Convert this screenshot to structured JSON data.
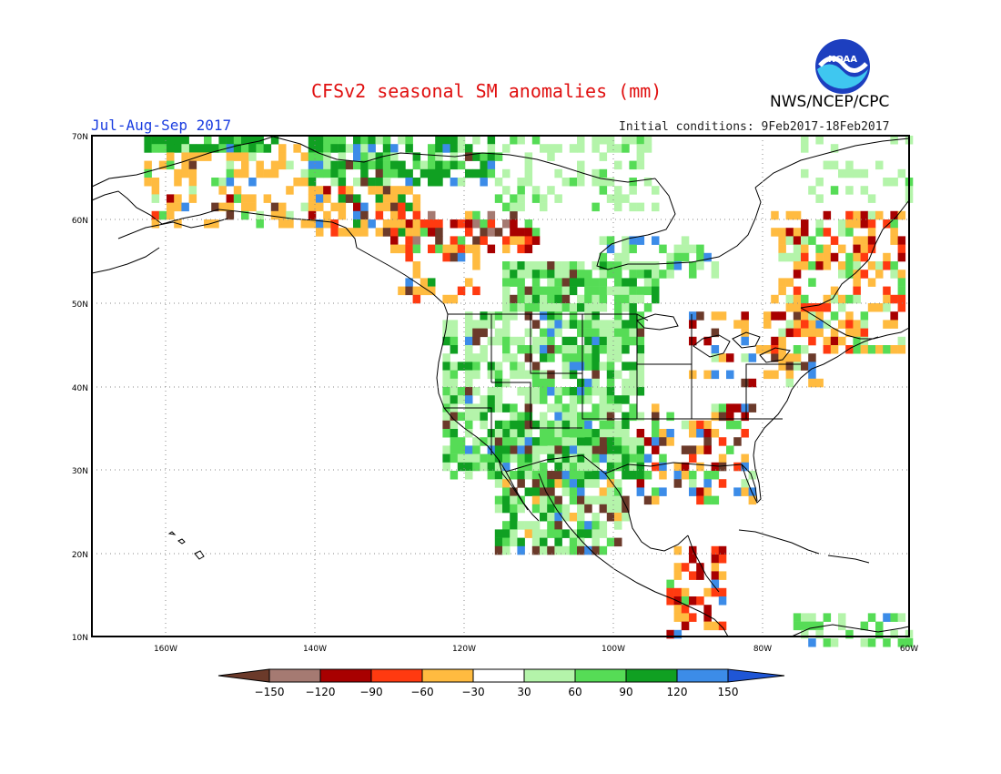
{
  "header": {
    "title": "CFSv2 seasonal SM anomalies (mm)",
    "agency": "NWS/NCEP/CPC",
    "period": "Jul-Aug-Sep 2017",
    "initial_conditions": "Initial conditions: 9Feb2017-18Feb2017",
    "logo_text": "NOAA"
  },
  "axes": {
    "lat_ticks": [
      "70N",
      "60N",
      "50N",
      "40N",
      "30N",
      "20N",
      "10N"
    ],
    "lon_ticks": [
      "160W",
      "140W",
      "120W",
      "100W",
      "80W",
      "60W"
    ]
  },
  "colorbar": {
    "labels": [
      "-150",
      "-120",
      "-90",
      "-60",
      "-30",
      "30",
      "60",
      "90",
      "120",
      "150"
    ],
    "colors": [
      "#6b3a2a",
      "#a57a72",
      "#a80000",
      "#ff3a10",
      "#ffbb40",
      "#ffffff",
      "#b4f4aa",
      "#56dc56",
      "#10a022",
      "#3c8ce8",
      "#1f56d6"
    ]
  }
}
